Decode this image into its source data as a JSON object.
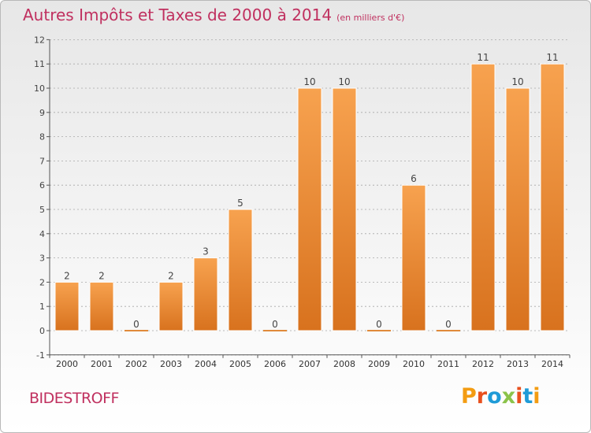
{
  "header": {
    "title": "Autres Impôts et Taxes de 2000 à 2014",
    "unit": "(en milliers d'€)"
  },
  "footer": {
    "commune": "BIDESTROFF",
    "logo_text": "Proxiti",
    "logo_colors": [
      "#f39c12",
      "#e8501e",
      "#1f9bd7",
      "#8bc34a",
      "#e8501e",
      "#1f9bd7",
      "#f39c12"
    ]
  },
  "colors": {
    "title": "#c0305f",
    "bar_top": "#f7a24f",
    "bar_bottom": "#d8721e",
    "axis": "#555555",
    "grid": "#999999"
  },
  "chart_data": {
    "type": "bar",
    "title": "Autres Impôts et Taxes de 2000 à 2014",
    "subtitle": "(en milliers d'€)",
    "categories": [
      "2000",
      "2001",
      "2002",
      "2003",
      "2004",
      "2005",
      "2006",
      "2007",
      "2008",
      "2009",
      "2010",
      "2011",
      "2012",
      "2013",
      "2014"
    ],
    "values": [
      2,
      2,
      0,
      2,
      3,
      5,
      0,
      10,
      10,
      0,
      6,
      0,
      11,
      10,
      11
    ],
    "data_labels": [
      "2",
      "2",
      "0",
      "2",
      "3",
      "5",
      "0",
      "10",
      "10",
      "0",
      "6",
      "0",
      "11",
      "10",
      "11"
    ],
    "yticks": [
      -1,
      0,
      1,
      2,
      3,
      4,
      5,
      6,
      7,
      8,
      9,
      10,
      11,
      12
    ],
    "ytick_labels": [
      "-1",
      "0",
      "1",
      "2",
      "3",
      "4",
      "5",
      "6",
      "7",
      "8",
      "9",
      "10",
      "11",
      "12"
    ],
    "ylim": [
      -1,
      12
    ],
    "grid": true,
    "legend": "none"
  }
}
